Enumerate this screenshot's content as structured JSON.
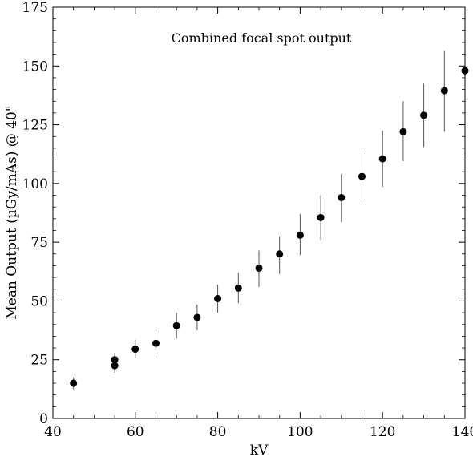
{
  "chart_data": {
    "type": "scatter",
    "title": "Combined focal spot output",
    "xlabel": "kV",
    "ylabel": "Mean Output (µGy/mAs) @ 40\"",
    "xlim": [
      40,
      140
    ],
    "ylim": [
      0,
      175
    ],
    "x_ticks": [
      40,
      60,
      80,
      100,
      120,
      140
    ],
    "y_ticks": [
      0,
      25,
      50,
      75,
      100,
      125,
      150,
      175
    ],
    "x_minor_step": 5,
    "y_minor_step": 5,
    "grid": false,
    "legend": "none",
    "colors": {
      "points": "#000000",
      "error_bars": "#555555",
      "axes": "#000000"
    },
    "series": [
      {
        "x": [
          45,
          55,
          55,
          60,
          65,
          70,
          75,
          80,
          85,
          90,
          95,
          100,
          105,
          110,
          115,
          120,
          125,
          130,
          135,
          140
        ],
        "y": [
          15,
          22.5,
          25,
          29.5,
          32,
          39.5,
          43,
          51,
          55.5,
          64,
          70,
          78,
          85.5,
          94,
          103,
          110.5,
          122,
          129,
          139.5,
          148
        ],
        "y_low": [
          12.5,
          19.5,
          22,
          25.5,
          27.5,
          34,
          37.5,
          45,
          49,
          56,
          61.5,
          69.5,
          76,
          83.5,
          92,
          98.5,
          109.5,
          115.5,
          122,
          134
        ],
        "y_high": [
          17.5,
          25.5,
          28,
          33.5,
          36.5,
          45,
          48.5,
          57,
          62,
          71.5,
          77.5,
          87,
          95,
          104,
          114,
          122.5,
          135,
          142.5,
          156.5,
          162
        ]
      }
    ]
  }
}
